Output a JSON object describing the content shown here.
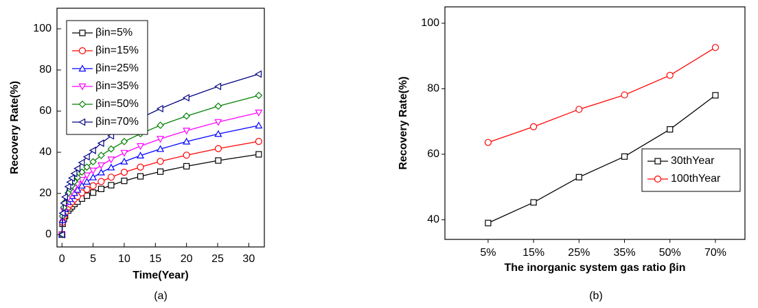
{
  "chart_data": [
    {
      "type": "line",
      "caption": "(a)",
      "x_label": "Time(Year)",
      "y_label": "Recovery  Rate(%)",
      "x": [
        0,
        0.1,
        0.3,
        0.5,
        1,
        1.3,
        1.6,
        2,
        2.5,
        3.2,
        4,
        5,
        6.3,
        7.9,
        10,
        12.6,
        15.8,
        20,
        25.1,
        31.6
      ],
      "xlim": [
        -0.8,
        32.5
      ],
      "xticks": [
        0,
        5,
        10,
        15,
        20,
        25,
        30
      ],
      "ylim": [
        -6,
        110
      ],
      "yticks": [
        0,
        20,
        40,
        60,
        80,
        100
      ],
      "legend": "upper-left",
      "series": [
        {
          "name": "βin=5%",
          "color": "#000000",
          "marker": "square",
          "values": [
            0,
            5.2,
            7.6,
            9.1,
            11.7,
            12.8,
            13.7,
            14.9,
            16.0,
            17.5,
            18.9,
            20.4,
            22.2,
            24.0,
            26.1,
            28.3,
            30.6,
            33.2,
            36.0,
            39.0
          ]
        },
        {
          "name": "βin=15%",
          "color": "#ff0000",
          "marker": "circle",
          "values": [
            0,
            6.0,
            8.9,
            10.6,
            13.5,
            14.8,
            15.9,
            17.3,
            18.6,
            20.3,
            22.0,
            23.7,
            25.8,
            27.9,
            30.3,
            32.8,
            35.6,
            38.6,
            41.8,
            45.3
          ]
        },
        {
          "name": "βin=25%",
          "color": "#0000ff",
          "marker": "triangle-up",
          "values": [
            0,
            7.0,
            10.4,
            12.4,
            15.8,
            17.3,
            18.7,
            20.2,
            21.8,
            23.8,
            25.7,
            27.8,
            30.2,
            32.6,
            35.5,
            38.4,
            41.6,
            45.2,
            48.9,
            53.0
          ]
        },
        {
          "name": "βin=35%",
          "color": "#ff00ff",
          "marker": "triangle-down",
          "values": [
            0,
            7.9,
            11.6,
            13.9,
            17.7,
            19.4,
            20.9,
            22.6,
            24.4,
            26.6,
            28.8,
            31.1,
            33.7,
            36.5,
            39.7,
            43.0,
            46.5,
            50.5,
            54.7,
            59.3
          ]
        },
        {
          "name": "βin=50%",
          "color": "#008000",
          "marker": "diamond",
          "values": [
            0,
            9.0,
            13.2,
            15.8,
            20.2,
            22.1,
            23.8,
            25.8,
            27.8,
            30.4,
            32.8,
            35.4,
            38.5,
            41.6,
            45.2,
            49.0,
            53.1,
            57.6,
            62.4,
            67.6
          ]
        },
        {
          "name": "βin=70%",
          "color": "#000080",
          "marker": "triangle-left",
          "values": [
            0,
            10.4,
            15.3,
            18.3,
            23.3,
            25.5,
            27.5,
            29.7,
            32.1,
            35.0,
            37.8,
            40.9,
            44.4,
            48.0,
            52.2,
            56.6,
            61.2,
            66.5,
            72.0,
            78.0
          ]
        }
      ]
    },
    {
      "type": "line",
      "caption": "(b)",
      "x_label": "The inorganic system gas ratio βin",
      "y_label": "Recovery  Rate(%)",
      "categories": [
        "5%",
        "15%",
        "25%",
        "35%",
        "50%",
        "70%"
      ],
      "ylim": [
        34,
        105
      ],
      "yticks": [
        40,
        60,
        80,
        100
      ],
      "legend": "right",
      "series": [
        {
          "name": "30thYear",
          "color": "#000000",
          "marker": "square",
          "values": [
            39.0,
            45.3,
            53.0,
            59.3,
            67.6,
            78.0
          ]
        },
        {
          "name": "100thYear",
          "color": "#ff0000",
          "marker": "circle",
          "values": [
            63.6,
            68.4,
            73.7,
            78.1,
            84.1,
            92.6
          ]
        }
      ]
    }
  ]
}
